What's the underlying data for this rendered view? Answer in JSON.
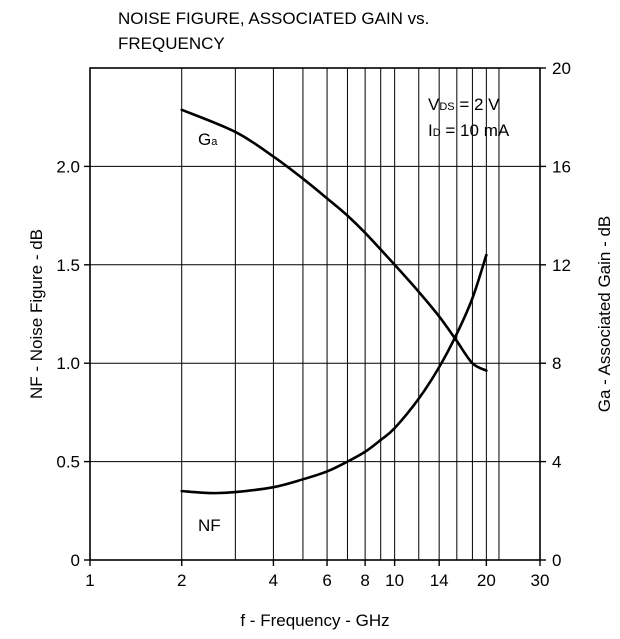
{
  "chart_data": {
    "type": "line",
    "title_line1": "NOISE FIGURE, ASSOCIATED GAIN vs.",
    "title_line2": "FREQUENCY",
    "xlabel": "f - Frequency - GHz",
    "ylabel_left": "NF - Noise Figure - dB",
    "ylabel_right": "Ga - Associated Gain - dB",
    "x_scale": "log",
    "xlim": [
      1,
      30
    ],
    "ylim_left": [
      0,
      2.5
    ],
    "ylim_right": [
      0,
      20
    ],
    "x_ticks": [
      {
        "value": 1,
        "label": "1"
      },
      {
        "value": 2,
        "label": "2"
      },
      {
        "value": 4,
        "label": "4"
      },
      {
        "value": 6,
        "label": "6"
      },
      {
        "value": 8,
        "label": "8"
      },
      {
        "value": 10,
        "label": "10"
      },
      {
        "value": 14,
        "label": "14"
      },
      {
        "value": 20,
        "label": "20"
      },
      {
        "value": 30,
        "label": "30"
      }
    ],
    "x_grid": [
      2,
      3,
      4,
      5,
      6,
      7,
      8,
      9,
      10,
      12,
      14,
      16,
      18,
      20,
      22
    ],
    "y_ticks_left": [
      {
        "value": 0,
        "label": "0"
      },
      {
        "value": 0.5,
        "label": "0.5"
      },
      {
        "value": 1.0,
        "label": "1.0"
      },
      {
        "value": 1.5,
        "label": "1.5"
      },
      {
        "value": 2.0,
        "label": "2.0"
      }
    ],
    "y_ticks_right": [
      {
        "value": 0,
        "label": "0"
      },
      {
        "value": 4,
        "label": "4"
      },
      {
        "value": 8,
        "label": "8"
      },
      {
        "value": 12,
        "label": "12"
      },
      {
        "value": 16,
        "label": "16"
      },
      {
        "value": 20,
        "label": "20"
      }
    ],
    "grid": true,
    "series": [
      {
        "name": "NF",
        "axis": "left",
        "x": [
          2,
          2.5,
          3,
          4,
          5,
          6,
          7,
          8,
          9,
          10,
          12,
          14,
          16,
          18,
          20
        ],
        "y": [
          0.35,
          0.34,
          0.345,
          0.37,
          0.41,
          0.45,
          0.5,
          0.55,
          0.61,
          0.67,
          0.82,
          0.98,
          1.15,
          1.33,
          1.55
        ]
      },
      {
        "name": "Ga",
        "axis": "right",
        "x": [
          2,
          3,
          4,
          5,
          6,
          7,
          8,
          10,
          12,
          14,
          16,
          18,
          20
        ],
        "y": [
          18.3,
          17.4,
          16.4,
          15.5,
          14.7,
          14.0,
          13.3,
          12.0,
          10.9,
          9.9,
          8.9,
          8.0,
          7.7
        ]
      }
    ],
    "annotations": {
      "vds_main": "V",
      "vds_sub": "DS",
      "vds_value": " = 2 V",
      "id_main": "I",
      "id_sub": "D",
      "id_value": " = 10 mA",
      "ga_main": "G",
      "ga_sub": "a",
      "nf_label": "NF"
    }
  }
}
